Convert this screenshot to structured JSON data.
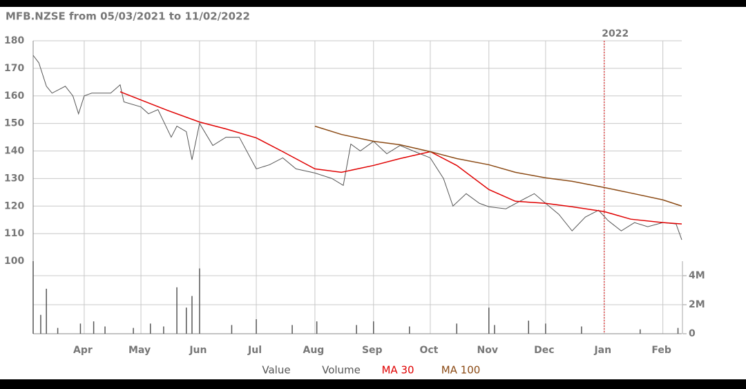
{
  "chart_data": {
    "type": "line",
    "title": "MFB.NZSE from 05/03/2021 to 11/02/2022",
    "xlim": [
      "2021-03-05",
      "2022-02-11"
    ],
    "xticks": [
      {
        "value": "2021-04-01",
        "label": "Apr"
      },
      {
        "value": "2021-05-01",
        "label": "May"
      },
      {
        "value": "2021-06-01",
        "label": "Jun"
      },
      {
        "value": "2021-07-01",
        "label": "Jul"
      },
      {
        "value": "2021-08-01",
        "label": "Aug"
      },
      {
        "value": "2021-09-01",
        "label": "Sep"
      },
      {
        "value": "2021-10-01",
        "label": "Oct"
      },
      {
        "value": "2021-11-01",
        "label": "Nov"
      },
      {
        "value": "2021-12-01",
        "label": "Dec"
      },
      {
        "value": "2022-01-01",
        "label": "Jan"
      },
      {
        "value": "2022-02-01",
        "label": "Feb"
      }
    ],
    "ylim": [
      100,
      180
    ],
    "yticks": [
      100,
      110,
      120,
      130,
      140,
      150,
      160,
      170,
      180
    ],
    "y2lim": [
      0,
      5000000
    ],
    "y2ticks": [
      {
        "value": 0,
        "label": "0"
      },
      {
        "value": 2000000,
        "label": "2M"
      },
      {
        "value": 4000000,
        "label": "4M"
      }
    ],
    "grid": true,
    "annotations": [
      {
        "label": "2022",
        "x": "2022-01-01",
        "color": "#e00000"
      }
    ],
    "series": [
      {
        "name": "Value",
        "color": "#555555",
        "type": "line",
        "x": [
          "2021-03-05",
          "2021-03-08",
          "2021-03-12",
          "2021-03-15",
          "2021-03-22",
          "2021-03-26",
          "2021-03-29",
          "2021-04-01",
          "2021-04-05",
          "2021-04-15",
          "2021-04-20",
          "2021-04-22",
          "2021-05-01",
          "2021-05-05",
          "2021-05-10",
          "2021-05-17",
          "2021-05-20",
          "2021-05-25",
          "2021-05-28",
          "2021-06-01",
          "2021-06-08",
          "2021-06-15",
          "2021-06-22",
          "2021-07-01",
          "2021-07-08",
          "2021-07-15",
          "2021-07-22",
          "2021-08-01",
          "2021-08-10",
          "2021-08-16",
          "2021-08-20",
          "2021-08-25",
          "2021-09-01",
          "2021-09-08",
          "2021-09-15",
          "2021-09-22",
          "2021-10-01",
          "2021-10-08",
          "2021-10-13",
          "2021-10-20",
          "2021-10-27",
          "2021-11-01",
          "2021-11-10",
          "2021-11-18",
          "2021-11-25",
          "2021-12-01",
          "2021-12-08",
          "2021-12-15",
          "2021-12-22",
          "2021-12-29",
          "2022-01-03",
          "2022-01-10",
          "2022-01-17",
          "2022-01-24",
          "2022-02-01",
          "2022-02-08",
          "2022-02-11"
        ],
        "values": [
          174.7,
          172,
          163.5,
          161,
          163.5,
          160,
          153.5,
          160,
          161,
          161,
          164,
          157.8,
          156,
          153.5,
          155,
          145,
          149,
          147,
          136.8,
          150,
          142,
          145,
          145,
          133.5,
          135,
          137.5,
          133.5,
          132,
          130,
          127.5,
          142.5,
          140,
          143.5,
          139,
          142,
          140,
          137.5,
          130,
          120,
          124.5,
          121,
          119.75,
          119,
          122,
          124.5,
          121,
          117,
          111,
          116,
          118.5,
          114.75,
          111,
          114,
          112.5,
          114,
          113.5,
          107.75
        ]
      },
      {
        "name": "Volume",
        "color": "#555555",
        "type": "bar",
        "axis": "y2",
        "x": [
          "2021-03-05",
          "2021-03-09",
          "2021-03-12",
          "2021-03-18",
          "2021-03-30",
          "2021-04-06",
          "2021-04-12",
          "2021-04-27",
          "2021-05-06",
          "2021-05-13",
          "2021-05-20",
          "2021-05-25",
          "2021-05-28",
          "2021-06-01",
          "2021-06-18",
          "2021-07-01",
          "2021-07-20",
          "2021-08-02",
          "2021-08-23",
          "2021-09-01",
          "2021-09-20",
          "2021-10-15",
          "2021-11-01",
          "2021-11-04",
          "2021-11-22",
          "2021-12-01",
          "2021-12-20",
          "2022-01-20",
          "2022-02-09"
        ],
        "values": [
          5000000,
          1300000,
          3100000,
          400000,
          700000,
          850000,
          500000,
          400000,
          700000,
          500000,
          3200000,
          1800000,
          2600000,
          4500000,
          600000,
          1000000,
          600000,
          850000,
          600000,
          850000,
          500000,
          700000,
          1800000,
          600000,
          900000,
          700000,
          500000,
          300000,
          400000
        ]
      },
      {
        "name": "MA 30",
        "color": "#e00000",
        "type": "line",
        "x": [
          "2021-04-20",
          "2021-05-01",
          "2021-05-15",
          "2021-06-01",
          "2021-06-15",
          "2021-07-01",
          "2021-07-15",
          "2021-08-01",
          "2021-08-15",
          "2021-09-01",
          "2021-09-15",
          "2021-10-01",
          "2021-10-15",
          "2021-11-01",
          "2021-11-15",
          "2021-12-01",
          "2021-12-15",
          "2022-01-01",
          "2022-01-15",
          "2022-02-01",
          "2022-02-11"
        ],
        "values": [
          161.5,
          158.5,
          154.75,
          150.5,
          148,
          144.75,
          139.75,
          133.5,
          132.25,
          134.75,
          137.25,
          139.75,
          134.75,
          126,
          121.75,
          121,
          119.75,
          118,
          115.25,
          114,
          113.5
        ]
      },
      {
        "name": "MA 100",
        "color": "#8b4a14",
        "type": "line",
        "x": [
          "2021-08-01",
          "2021-08-15",
          "2021-09-01",
          "2021-09-15",
          "2021-10-01",
          "2021-10-15",
          "2021-11-01",
          "2021-11-15",
          "2021-12-01",
          "2021-12-15",
          "2022-01-01",
          "2022-01-15",
          "2022-02-01",
          "2022-02-11"
        ],
        "values": [
          149,
          146,
          143.5,
          142.25,
          139.75,
          137.25,
          135,
          132.25,
          130.25,
          129,
          126.75,
          124.75,
          122.25,
          120
        ]
      }
    ]
  }
}
